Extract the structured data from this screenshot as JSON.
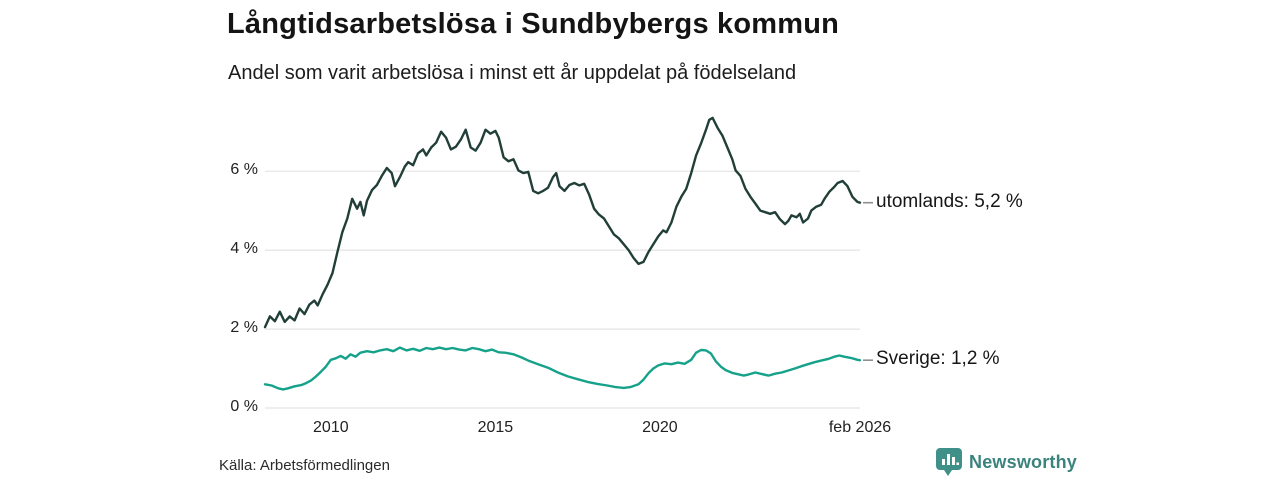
{
  "chart_data": {
    "type": "line",
    "title": "Långtidsarbetslösa i Sundbybergs kommun",
    "subtitle": "Andel som varit arbetslösa i minst ett år uppdelat på födelseland",
    "source": "Källa: Arbetsförmedlingen",
    "grid": true,
    "grid_color": "#e4e4e4",
    "connector_color": "#8f8f8f",
    "xlim": [
      2008.0,
      2026.08
    ],
    "ylim": [
      0,
      7.6
    ],
    "x_ticks": [
      {
        "label": "2010",
        "year": 2010
      },
      {
        "label": "2015",
        "year": 2015
      },
      {
        "label": "2020",
        "year": 2020
      },
      {
        "label": "feb 2026",
        "year": 2026.08
      }
    ],
    "y_ticks": [
      {
        "label": "0 %",
        "value": 0
      },
      {
        "label": "2 %",
        "value": 2
      },
      {
        "label": "4 %",
        "value": 4
      },
      {
        "label": "6 %",
        "value": 6
      }
    ],
    "legend_position": "right-of-line-ends",
    "series": [
      {
        "name": "utomlands",
        "end_label": "utomlands: 5,2 %",
        "end_value": "5,2 %",
        "color": "#213f38",
        "points": [
          [
            2008.0,
            2.05
          ],
          [
            2008.15,
            2.32
          ],
          [
            2008.3,
            2.2
          ],
          [
            2008.45,
            2.44
          ],
          [
            2008.6,
            2.18
          ],
          [
            2008.75,
            2.32
          ],
          [
            2008.9,
            2.22
          ],
          [
            2009.05,
            2.52
          ],
          [
            2009.2,
            2.38
          ],
          [
            2009.35,
            2.62
          ],
          [
            2009.5,
            2.72
          ],
          [
            2009.6,
            2.6
          ],
          [
            2009.75,
            2.88
          ],
          [
            2009.9,
            3.12
          ],
          [
            2010.05,
            3.42
          ],
          [
            2010.2,
            3.95
          ],
          [
            2010.35,
            4.45
          ],
          [
            2010.5,
            4.8
          ],
          [
            2010.65,
            5.3
          ],
          [
            2010.8,
            5.05
          ],
          [
            2010.9,
            5.22
          ],
          [
            2011.0,
            4.88
          ],
          [
            2011.1,
            5.25
          ],
          [
            2011.25,
            5.52
          ],
          [
            2011.4,
            5.65
          ],
          [
            2011.55,
            5.88
          ],
          [
            2011.7,
            6.08
          ],
          [
            2011.85,
            5.95
          ],
          [
            2011.95,
            5.62
          ],
          [
            2012.1,
            5.85
          ],
          [
            2012.25,
            6.12
          ],
          [
            2012.35,
            6.23
          ],
          [
            2012.5,
            6.15
          ],
          [
            2012.65,
            6.45
          ],
          [
            2012.8,
            6.55
          ],
          [
            2012.9,
            6.4
          ],
          [
            2013.05,
            6.6
          ],
          [
            2013.2,
            6.72
          ],
          [
            2013.35,
            7.0
          ],
          [
            2013.5,
            6.85
          ],
          [
            2013.65,
            6.55
          ],
          [
            2013.8,
            6.62
          ],
          [
            2013.95,
            6.8
          ],
          [
            2014.1,
            7.05
          ],
          [
            2014.25,
            6.6
          ],
          [
            2014.4,
            6.52
          ],
          [
            2014.55,
            6.72
          ],
          [
            2014.7,
            7.05
          ],
          [
            2014.85,
            6.95
          ],
          [
            2015.0,
            7.02
          ],
          [
            2015.1,
            6.85
          ],
          [
            2015.25,
            6.35
          ],
          [
            2015.4,
            6.25
          ],
          [
            2015.55,
            6.3
          ],
          [
            2015.7,
            6.02
          ],
          [
            2015.85,
            5.95
          ],
          [
            2016.0,
            5.98
          ],
          [
            2016.15,
            5.5
          ],
          [
            2016.3,
            5.44
          ],
          [
            2016.45,
            5.5
          ],
          [
            2016.6,
            5.58
          ],
          [
            2016.75,
            5.85
          ],
          [
            2016.85,
            5.95
          ],
          [
            2016.95,
            5.62
          ],
          [
            2017.1,
            5.5
          ],
          [
            2017.25,
            5.65
          ],
          [
            2017.4,
            5.7
          ],
          [
            2017.55,
            5.64
          ],
          [
            2017.7,
            5.68
          ],
          [
            2017.85,
            5.4
          ],
          [
            2018.0,
            5.05
          ],
          [
            2018.15,
            4.9
          ],
          [
            2018.3,
            4.8
          ],
          [
            2018.45,
            4.6
          ],
          [
            2018.6,
            4.4
          ],
          [
            2018.75,
            4.3
          ],
          [
            2018.9,
            4.15
          ],
          [
            2019.05,
            4.0
          ],
          [
            2019.2,
            3.8
          ],
          [
            2019.35,
            3.65
          ],
          [
            2019.5,
            3.7
          ],
          [
            2019.65,
            3.95
          ],
          [
            2019.8,
            4.15
          ],
          [
            2019.95,
            4.35
          ],
          [
            2020.1,
            4.5
          ],
          [
            2020.2,
            4.45
          ],
          [
            2020.35,
            4.7
          ],
          [
            2020.5,
            5.1
          ],
          [
            2020.65,
            5.35
          ],
          [
            2020.8,
            5.55
          ],
          [
            2020.95,
            5.95
          ],
          [
            2021.1,
            6.4
          ],
          [
            2021.25,
            6.7
          ],
          [
            2021.4,
            7.05
          ],
          [
            2021.5,
            7.3
          ],
          [
            2021.6,
            7.35
          ],
          [
            2021.75,
            7.1
          ],
          [
            2021.9,
            6.9
          ],
          [
            2022.05,
            6.6
          ],
          [
            2022.2,
            6.3
          ],
          [
            2022.3,
            6.02
          ],
          [
            2022.45,
            5.88
          ],
          [
            2022.6,
            5.55
          ],
          [
            2022.75,
            5.35
          ],
          [
            2022.9,
            5.18
          ],
          [
            2023.05,
            5.0
          ],
          [
            2023.2,
            4.96
          ],
          [
            2023.35,
            4.92
          ],
          [
            2023.5,
            4.96
          ],
          [
            2023.65,
            4.78
          ],
          [
            2023.8,
            4.66
          ],
          [
            2023.9,
            4.74
          ],
          [
            2024.0,
            4.88
          ],
          [
            2024.15,
            4.83
          ],
          [
            2024.25,
            4.92
          ],
          [
            2024.35,
            4.7
          ],
          [
            2024.5,
            4.8
          ],
          [
            2024.6,
            5.0
          ],
          [
            2024.75,
            5.1
          ],
          [
            2024.9,
            5.15
          ],
          [
            2025.0,
            5.3
          ],
          [
            2025.15,
            5.48
          ],
          [
            2025.3,
            5.6
          ],
          [
            2025.4,
            5.7
          ],
          [
            2025.55,
            5.75
          ],
          [
            2025.7,
            5.62
          ],
          [
            2025.85,
            5.35
          ],
          [
            2026.0,
            5.22
          ],
          [
            2026.08,
            5.2
          ]
        ]
      },
      {
        "name": "Sverige",
        "end_label": "Sverige: 1,2 %",
        "end_value": "1,2 %",
        "color": "#16a28a",
        "points": [
          [
            2008.0,
            0.6
          ],
          [
            2008.2,
            0.57
          ],
          [
            2008.4,
            0.5
          ],
          [
            2008.55,
            0.47
          ],
          [
            2008.7,
            0.5
          ],
          [
            2008.9,
            0.55
          ],
          [
            2009.1,
            0.58
          ],
          [
            2009.25,
            0.63
          ],
          [
            2009.4,
            0.7
          ],
          [
            2009.55,
            0.8
          ],
          [
            2009.7,
            0.92
          ],
          [
            2009.85,
            1.05
          ],
          [
            2010.0,
            1.22
          ],
          [
            2010.15,
            1.26
          ],
          [
            2010.3,
            1.32
          ],
          [
            2010.45,
            1.25
          ],
          [
            2010.6,
            1.36
          ],
          [
            2010.75,
            1.3
          ],
          [
            2010.9,
            1.4
          ],
          [
            2011.1,
            1.44
          ],
          [
            2011.3,
            1.41
          ],
          [
            2011.5,
            1.46
          ],
          [
            2011.7,
            1.49
          ],
          [
            2011.9,
            1.44
          ],
          [
            2012.1,
            1.53
          ],
          [
            2012.3,
            1.46
          ],
          [
            2012.5,
            1.5
          ],
          [
            2012.7,
            1.45
          ],
          [
            2012.9,
            1.52
          ],
          [
            2013.1,
            1.49
          ],
          [
            2013.3,
            1.53
          ],
          [
            2013.5,
            1.49
          ],
          [
            2013.7,
            1.52
          ],
          [
            2013.9,
            1.48
          ],
          [
            2014.1,
            1.46
          ],
          [
            2014.3,
            1.52
          ],
          [
            2014.5,
            1.49
          ],
          [
            2014.7,
            1.44
          ],
          [
            2014.9,
            1.48
          ],
          [
            2015.1,
            1.41
          ],
          [
            2015.3,
            1.4
          ],
          [
            2015.55,
            1.36
          ],
          [
            2015.8,
            1.28
          ],
          [
            2016.0,
            1.2
          ],
          [
            2016.3,
            1.11
          ],
          [
            2016.6,
            1.02
          ],
          [
            2016.9,
            0.9
          ],
          [
            2017.2,
            0.8
          ],
          [
            2017.5,
            0.73
          ],
          [
            2017.8,
            0.66
          ],
          [
            2018.1,
            0.61
          ],
          [
            2018.4,
            0.57
          ],
          [
            2018.65,
            0.53
          ],
          [
            2018.9,
            0.51
          ],
          [
            2019.1,
            0.53
          ],
          [
            2019.35,
            0.6
          ],
          [
            2019.5,
            0.72
          ],
          [
            2019.65,
            0.88
          ],
          [
            2019.8,
            1.0
          ],
          [
            2019.95,
            1.08
          ],
          [
            2020.15,
            1.13
          ],
          [
            2020.35,
            1.11
          ],
          [
            2020.55,
            1.15
          ],
          [
            2020.75,
            1.12
          ],
          [
            2020.95,
            1.22
          ],
          [
            2021.1,
            1.4
          ],
          [
            2021.25,
            1.47
          ],
          [
            2021.4,
            1.46
          ],
          [
            2021.55,
            1.38
          ],
          [
            2021.7,
            1.18
          ],
          [
            2021.85,
            1.05
          ],
          [
            2022.0,
            0.96
          ],
          [
            2022.2,
            0.89
          ],
          [
            2022.4,
            0.85
          ],
          [
            2022.55,
            0.82
          ],
          [
            2022.7,
            0.85
          ],
          [
            2022.9,
            0.9
          ],
          [
            2023.1,
            0.86
          ],
          [
            2023.3,
            0.82
          ],
          [
            2023.5,
            0.87
          ],
          [
            2023.7,
            0.9
          ],
          [
            2023.9,
            0.95
          ],
          [
            2024.1,
            1.0
          ],
          [
            2024.3,
            1.06
          ],
          [
            2024.5,
            1.11
          ],
          [
            2024.7,
            1.16
          ],
          [
            2024.9,
            1.2
          ],
          [
            2025.1,
            1.24
          ],
          [
            2025.3,
            1.3
          ],
          [
            2025.45,
            1.33
          ],
          [
            2025.6,
            1.3
          ],
          [
            2025.8,
            1.27
          ],
          [
            2026.0,
            1.22
          ],
          [
            2026.08,
            1.21
          ]
        ]
      }
    ]
  },
  "branding": {
    "name": "Newsworthy",
    "logo_icon": "bar-chart-bubble-icon",
    "color": "#3b837d",
    "logo_fill": "#40908a"
  }
}
